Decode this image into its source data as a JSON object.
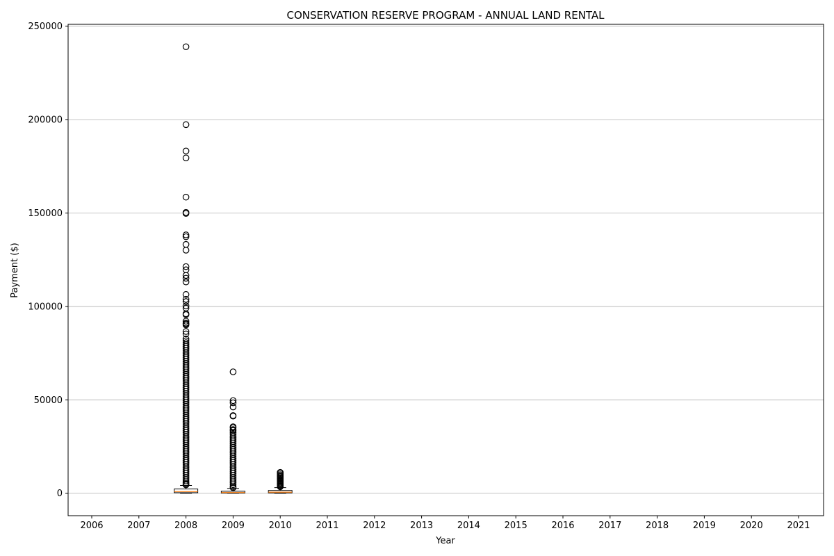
{
  "chart_data": {
    "type": "boxplot",
    "title": "CONSERVATION RESERVE PROGRAM - ANNUAL LAND RENTAL",
    "xlabel": "Year",
    "ylabel": "Payment ($)",
    "categories": [
      "2006",
      "2007",
      "2008",
      "2009",
      "2010",
      "2011",
      "2012",
      "2013",
      "2014",
      "2015",
      "2016",
      "2017",
      "2018",
      "2019",
      "2020",
      "2021"
    ],
    "ylim": [
      -12000,
      251000
    ],
    "yticks": [
      0,
      50000,
      100000,
      150000,
      200000,
      250000
    ],
    "ytick_labels": [
      "0",
      "50000",
      "100000",
      "150000",
      "200000",
      "250000"
    ],
    "grid": "y",
    "box_color": "#000000",
    "median_color": "#ff7f0e",
    "grid_color": "#b0b0b0",
    "boxes": [
      {
        "category": "2008",
        "whisker_low": 0,
        "q1": 300,
        "median": 900,
        "q3": 2300,
        "whisker_high": 4200,
        "outliers": [
          239000,
          197300,
          183200,
          179500,
          158500,
          150300,
          149800,
          138300,
          137300,
          133200,
          130100,
          121300,
          119600,
          116600,
          115100,
          113100,
          106400,
          103800,
          102600,
          100300,
          99100,
          96100,
          95600,
          92100,
          91100,
          90600,
          90100,
          86600,
          85300,
          82600,
          81600,
          80600,
          79600,
          78600,
          77600,
          76600,
          75600,
          74600,
          73600,
          72600,
          71600,
          70600,
          69600,
          68600,
          67600,
          66600,
          65600,
          64600,
          63600,
          62600,
          61600,
          60600,
          59600,
          58600,
          57600,
          56600,
          55600,
          54600,
          53600,
          52600,
          51600,
          50600,
          49600,
          48600,
          47600,
          46600,
          45600,
          44600,
          43600,
          42600,
          41600,
          40600,
          39600,
          38600,
          37600,
          36600,
          35600,
          34600,
          33600,
          32600,
          31600,
          30600,
          29600,
          28600,
          27600,
          26600,
          25600,
          24600,
          23600,
          22600,
          21600,
          20600,
          19600,
          18600,
          17600,
          16600,
          15600,
          14600,
          13600,
          12600,
          11600,
          10600,
          9600,
          8600,
          7600,
          6600,
          5600,
          5000,
          4500
        ]
      },
      {
        "category": "2009",
        "whisker_low": 0,
        "q1": 100,
        "median": 400,
        "q3": 1100,
        "whisker_high": 2600,
        "outliers": [
          65000,
          49600,
          48400,
          46200,
          41600,
          41300,
          35600,
          35100,
          34100,
          33600,
          32600,
          31600,
          30600,
          29600,
          28600,
          27600,
          26600,
          25600,
          24600,
          23600,
          22600,
          21600,
          20600,
          19600,
          18600,
          17600,
          16600,
          15600,
          14600,
          13600,
          12600,
          11600,
          10600,
          9600,
          8600,
          7600,
          6600,
          5600,
          4600,
          3600,
          3000
        ]
      },
      {
        "category": "2010",
        "whisker_low": 0,
        "q1": 200,
        "median": 600,
        "q3": 1500,
        "whisker_high": 3000,
        "outliers": [
          11200,
          10600,
          9900,
          9300,
          8900,
          8300,
          7800,
          7300,
          6800,
          6400,
          5900,
          5400,
          4900,
          4400,
          3900,
          3500
        ]
      }
    ]
  }
}
